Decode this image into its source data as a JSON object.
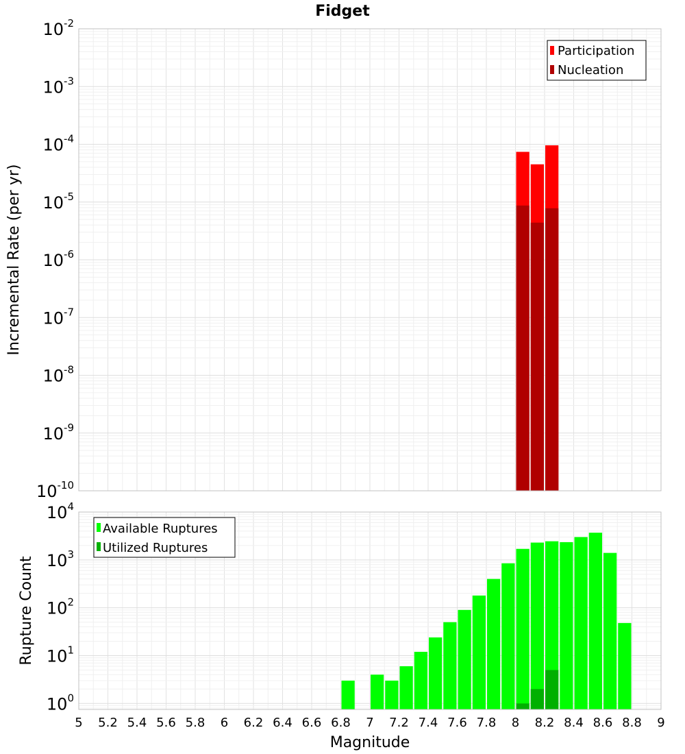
{
  "title": "Fidget",
  "x_axis": {
    "label": "Magnitude",
    "ticks": [
      "5",
      "5.2",
      "5.4",
      "5.6",
      "5.8",
      "6",
      "6.2",
      "6.4",
      "6.6",
      "6.8",
      "7",
      "7.2",
      "7.4",
      "7.6",
      "7.8",
      "8",
      "8.2",
      "8.4",
      "8.6",
      "8.8",
      "9"
    ]
  },
  "chart_data": [
    {
      "type": "bar",
      "title": "Fidget",
      "xlabel": "Magnitude",
      "ylabel": "Incremental Rate (per yr)",
      "y_scale": "log",
      "xlim": [
        5,
        9
      ],
      "ylim": [
        1e-10,
        0.01
      ],
      "y_ticks": [
        {
          "base": "10",
          "exp": "-10",
          "value": 1e-10
        },
        {
          "base": "10",
          "exp": "-9",
          "value": 1e-09
        },
        {
          "base": "10",
          "exp": "-8",
          "value": 1e-08
        },
        {
          "base": "10",
          "exp": "-7",
          "value": 1e-07
        },
        {
          "base": "10",
          "exp": "-6",
          "value": 1e-06
        },
        {
          "base": "10",
          "exp": "-5",
          "value": 1e-05
        },
        {
          "base": "10",
          "exp": "-4",
          "value": 0.0001
        },
        {
          "base": "10",
          "exp": "-3",
          "value": 0.001
        },
        {
          "base": "10",
          "exp": "-2",
          "value": 0.01
        }
      ],
      "grid": true,
      "legend_position": "top-right",
      "bar_width": 0.1,
      "series": [
        {
          "name": "Participation",
          "color": "#ff0000",
          "points": [
            {
              "x": 8.05,
              "y": 7.4e-05
            },
            {
              "x": 8.15,
              "y": 4.5e-05
            },
            {
              "x": 8.25,
              "y": 9.6e-05
            }
          ]
        },
        {
          "name": "Nucleation",
          "color": "#b00000",
          "points": [
            {
              "x": 8.05,
              "y": 8.7e-06
            },
            {
              "x": 8.15,
              "y": 4.4e-06
            },
            {
              "x": 8.25,
              "y": 7.8e-06
            }
          ]
        }
      ]
    },
    {
      "type": "bar",
      "xlabel": "Magnitude",
      "ylabel": "Rupture Count",
      "y_scale": "log",
      "xlim": [
        5,
        9
      ],
      "ylim": [
        0.75,
        10000
      ],
      "y_ticks": [
        {
          "base": "10",
          "exp": "0",
          "value": 1
        },
        {
          "base": "10",
          "exp": "1",
          "value": 10
        },
        {
          "base": "10",
          "exp": "2",
          "value": 100
        },
        {
          "base": "10",
          "exp": "3",
          "value": 1000
        },
        {
          "base": "10",
          "exp": "4",
          "value": 10000
        }
      ],
      "grid": true,
      "legend_position": "top-left",
      "bar_width": 0.1,
      "series": [
        {
          "name": "Available Ruptures",
          "color": "#00ff00",
          "points": [
            {
              "x": 6.85,
              "y": 3
            },
            {
              "x": 7.05,
              "y": 4
            },
            {
              "x": 7.15,
              "y": 3
            },
            {
              "x": 7.25,
              "y": 6
            },
            {
              "x": 7.35,
              "y": 12
            },
            {
              "x": 7.45,
              "y": 24
            },
            {
              "x": 7.55,
              "y": 50
            },
            {
              "x": 7.65,
              "y": 90
            },
            {
              "x": 7.75,
              "y": 180
            },
            {
              "x": 7.85,
              "y": 400
            },
            {
              "x": 7.95,
              "y": 850
            },
            {
              "x": 8.05,
              "y": 1700
            },
            {
              "x": 8.15,
              "y": 2300
            },
            {
              "x": 8.25,
              "y": 2450
            },
            {
              "x": 8.35,
              "y": 2350
            },
            {
              "x": 8.45,
              "y": 3000
            },
            {
              "x": 8.55,
              "y": 3700
            },
            {
              "x": 8.65,
              "y": 1400
            },
            {
              "x": 8.75,
              "y": 48
            }
          ]
        },
        {
          "name": "Utilized Ruptures",
          "color": "#00b000",
          "points": [
            {
              "x": 8.05,
              "y": 1
            },
            {
              "x": 8.15,
              "y": 2
            },
            {
              "x": 8.25,
              "y": 5
            }
          ]
        }
      ]
    }
  ]
}
